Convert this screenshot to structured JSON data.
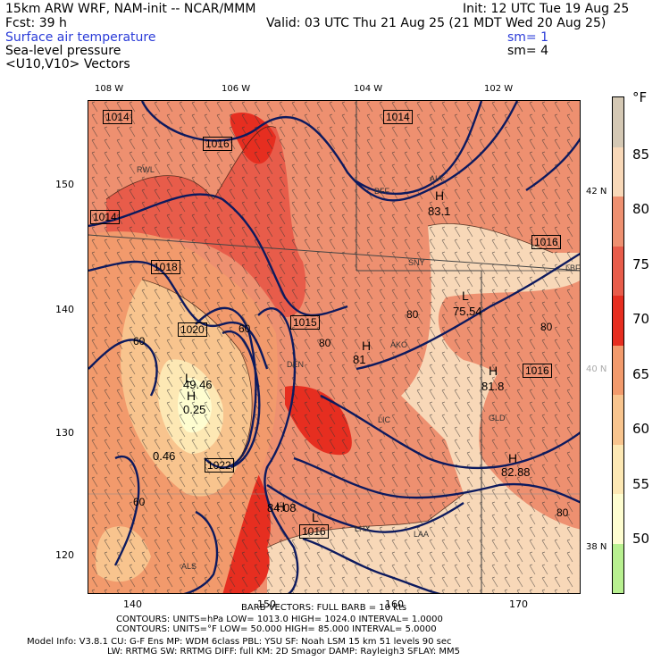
{
  "header": {
    "line1_left": "15km ARW WRF, NAM-init -- NCAR/MMM",
    "line1_right": "Init: 12 UTC Tue 19 Aug 25",
    "line2_left": "Fcst:    39 h",
    "line2_right": "Valid: 03 UTC Thu 21 Aug 25 (21 MDT Wed 20 Aug 25)",
    "field1": "Surface air temperature",
    "field1_sm": "sm= 1",
    "field2": "Sea-level pressure",
    "field2_sm": "sm= 4",
    "field3": "<U10,V10> Vectors"
  },
  "lon_labels": [
    "108 W",
    "106 W",
    "104 W",
    "102 W"
  ],
  "lat_labels": [
    "42 N",
    "40 N",
    "38 N"
  ],
  "y_ticks": [
    "150",
    "140",
    "130",
    "120"
  ],
  "x_ticks": [
    "140",
    "150",
    "160",
    "170"
  ],
  "colorbar": {
    "unit": "°F",
    "labels": [
      "85",
      "80",
      "75",
      "70",
      "65",
      "60",
      "55",
      "50"
    ],
    "colors": [
      "#d4c8b4",
      "#f8d8b8",
      "#ee9070",
      "#e85c4a",
      "#e62e20",
      "#f29a6c",
      "#f8c48e",
      "#fde8b4",
      "#fefdd0",
      "#b8f090"
    ]
  },
  "pressure_labels": [
    "1014",
    "1016",
    "1014",
    "1014",
    "1016",
    "1018",
    "1015",
    "1020",
    "1016",
    "1022",
    "1016"
  ],
  "point_labels": [
    "H",
    "83.1",
    "L",
    "75.54",
    "H",
    "81",
    "H",
    "81.8",
    "H",
    "82.88",
    "L",
    "49.46",
    "H",
    "0.25",
    "0.46",
    "H",
    "84.08",
    "L"
  ],
  "isotherm_labels": [
    "60",
    "60",
    "80",
    "80",
    "80",
    "60",
    "80"
  ],
  "station_labels": [
    "RWL",
    "BFF",
    "AIA",
    "SNY",
    "LBF",
    "DEN",
    "AKO",
    "LIC",
    "GLD",
    "LHX",
    "LAA",
    "ALS"
  ],
  "footer": {
    "barb": "BARB VECTORS:  FULL BARB = 10 kts",
    "contours1": "CONTOURS:  UNITS=hPa  LOW=    1013.0          HIGH=  1024.0          INTERVAL=    1.0000",
    "contours2": "CONTOURS:  UNITS=°F  LOW=   50.000         HIGH=   85.000         INTERVAL=    5.0000",
    "model1": "Model Info: V3.8.1     CU: G-F Ens  MP: WDM 6class  PBL: YSU       SF: Noah LSM    15 km    51 levels    90 sec",
    "model2": "LW: RRTMG    SW: RRTMG   DIFF: full    KM: 2D Smagor DAMP: Rayleigh3   SFLAY: MM5"
  }
}
